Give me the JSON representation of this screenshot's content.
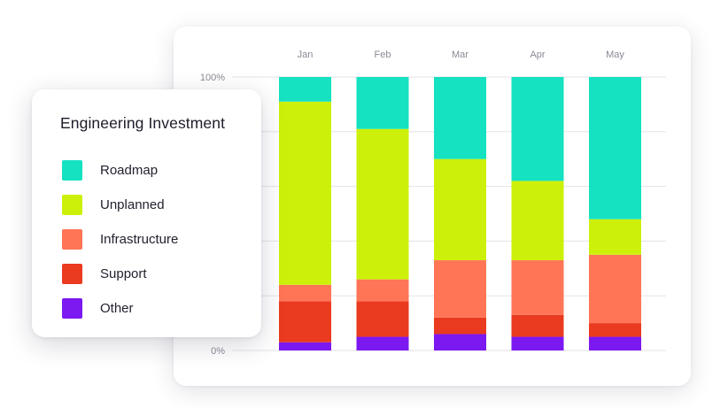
{
  "colors": {
    "Roadmap": "#14e2c0",
    "Unplanned": "#cdf00b",
    "Infrastructure": "#ff7556",
    "Support": "#ea3a1f",
    "Other": "#7c18f0",
    "grid": "#e3e3ea"
  },
  "chart_data": {
    "type": "bar",
    "stacked": true,
    "title": "Engineering Investment",
    "categories": [
      "Jan",
      "Feb",
      "Mar",
      "Apr",
      "May"
    ],
    "ylim": [
      0,
      100
    ],
    "y_tick_labels": [
      "100%",
      "0%"
    ],
    "grid": true,
    "legend_position": "left",
    "series": [
      {
        "name": "Other",
        "values": [
          3,
          5,
          6,
          5,
          5
        ]
      },
      {
        "name": "Support",
        "values": [
          15,
          13,
          6,
          8,
          5
        ]
      },
      {
        "name": "Infrastructure",
        "values": [
          6,
          8,
          21,
          20,
          25
        ]
      },
      {
        "name": "Unplanned",
        "values": [
          67,
          55,
          37,
          29,
          13
        ]
      },
      {
        "name": "Roadmap",
        "values": [
          9,
          19,
          30,
          38,
          52
        ]
      }
    ]
  },
  "legend": {
    "title": "Engineering Investment",
    "items": [
      {
        "label": "Roadmap",
        "icon": "roadmap-swatch"
      },
      {
        "label": "Unplanned",
        "icon": "unplanned-swatch"
      },
      {
        "label": "Infrastructure",
        "icon": "infrastructure-swatch"
      },
      {
        "label": "Support",
        "icon": "support-swatch"
      },
      {
        "label": "Other",
        "icon": "other-swatch"
      }
    ]
  }
}
